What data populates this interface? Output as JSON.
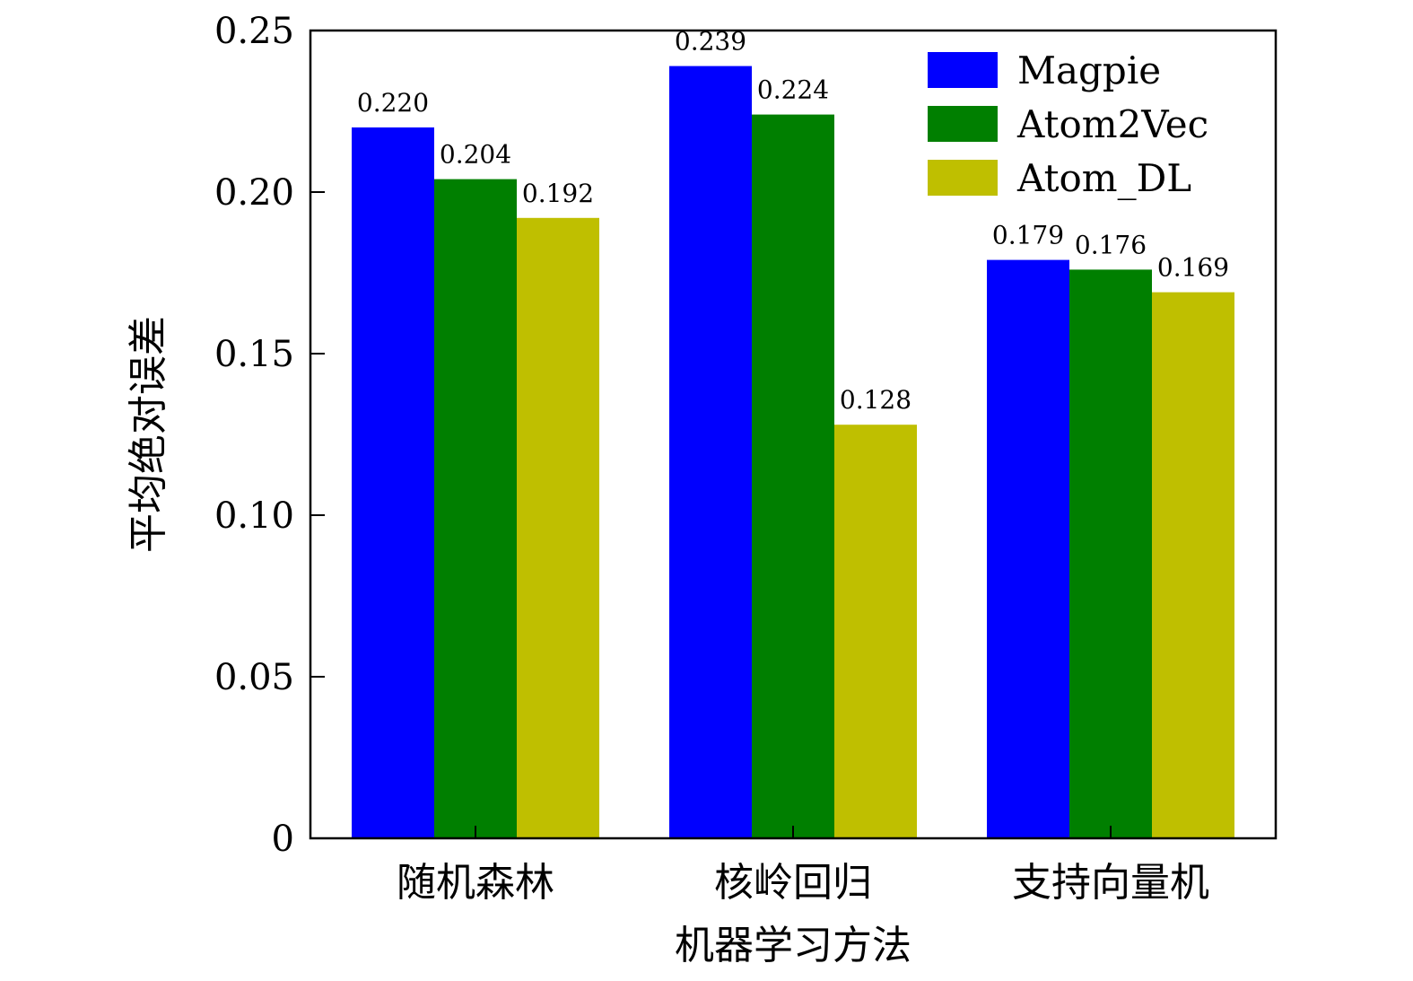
{
  "chart_data": {
    "type": "bar",
    "title": "",
    "xlabel": "机器学习方法",
    "ylabel": "平均绝对误差",
    "ylim": [
      0,
      0.25
    ],
    "yticks": [
      0,
      0.05,
      0.1,
      0.15,
      0.2,
      0.25
    ],
    "ytick_labels": [
      "0",
      "0.05",
      "0.10",
      "0.15",
      "0.20",
      "0.25"
    ],
    "categories": [
      "随机森林",
      "核岭回归",
      "支持向量机"
    ],
    "series": [
      {
        "name": "Magpie",
        "color": "#0000ff",
        "values": [
          0.22,
          0.239,
          0.179
        ],
        "labels": [
          "0.220",
          "0.239",
          "0.179"
        ]
      },
      {
        "name": "Atom2Vec",
        "color": "#007f00",
        "values": [
          0.204,
          0.224,
          0.176
        ],
        "labels": [
          "0.204",
          "0.224",
          "0.176"
        ]
      },
      {
        "name": "Atom_DL",
        "color": "#bfbf00",
        "values": [
          0.192,
          0.128,
          0.169
        ],
        "labels": [
          "0.192",
          "0.128",
          "0.169"
        ]
      }
    ],
    "legend_position": "top-right",
    "grid": false
  }
}
